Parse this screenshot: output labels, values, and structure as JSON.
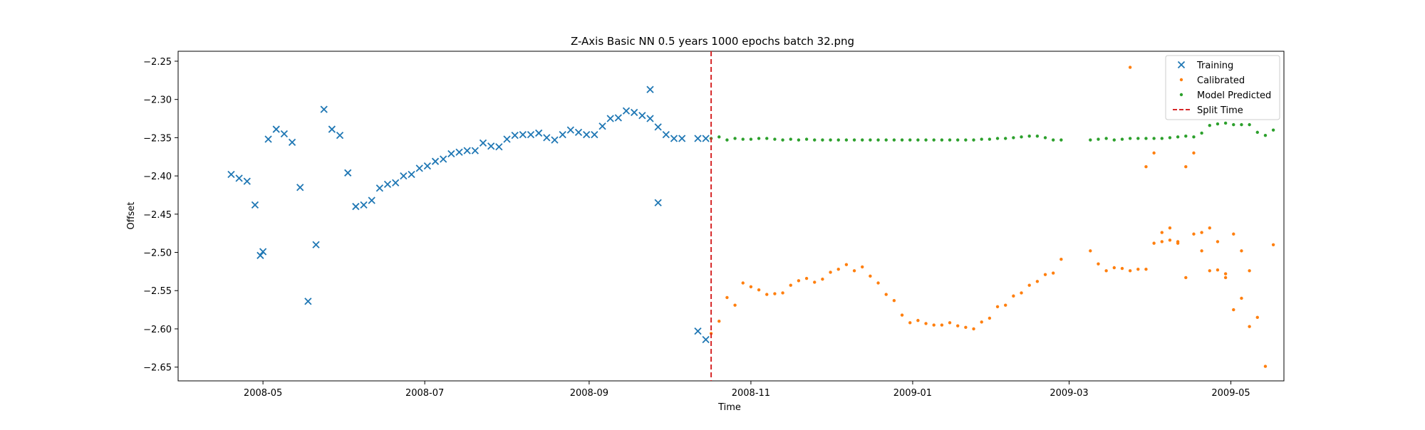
{
  "chart_data": {
    "type": "scatter",
    "title": "Z-Axis Basic NN 0.5 years 1000 epochs batch 32.png",
    "xlabel": "Time",
    "ylabel": "Offset",
    "x_type": "date",
    "xlim": [
      "2008-03-30",
      "2009-05-21"
    ],
    "ylim": [
      -2.668,
      -2.237
    ],
    "x_ticks": [
      "2008-05-01",
      "2008-07-01",
      "2008-09-01",
      "2008-11-01",
      "2009-01-01",
      "2009-03-01",
      "2009-05-01"
    ],
    "x_tick_labels": [
      "2008-05",
      "2008-07",
      "2008-09",
      "2008-11",
      "2009-01",
      "2009-03",
      "2009-05"
    ],
    "y_ticks": [
      -2.25,
      -2.3,
      -2.35,
      -2.4,
      -2.45,
      -2.5,
      -2.55,
      -2.6,
      -2.65
    ],
    "y_tick_labels": [
      "−2.25",
      "−2.30",
      "−2.35",
      "−2.40",
      "−2.45",
      "−2.50",
      "−2.55",
      "−2.60",
      "−2.65"
    ],
    "legend_position": "top-right",
    "colors": {
      "training": "#1f77b4",
      "calibrated": "#ff7f0e",
      "predicted": "#2ca02c",
      "split": "#d62728"
    },
    "split_time": {
      "name": "Split Time",
      "x": "2008-10-17"
    },
    "series": [
      {
        "name": "Training",
        "marker": "x",
        "x": [
          "2008-04-19",
          "2008-04-22",
          "2008-04-25",
          "2008-04-28",
          "2008-05-01",
          "2008-04-30",
          "2008-05-03",
          "2008-05-06",
          "2008-05-09",
          "2008-05-12",
          "2008-05-15",
          "2008-05-18",
          "2008-05-21",
          "2008-05-24",
          "2008-05-27",
          "2008-05-30",
          "2008-06-02",
          "2008-06-05",
          "2008-06-08",
          "2008-06-11",
          "2008-06-14",
          "2008-06-17",
          "2008-06-20",
          "2008-06-23",
          "2008-06-26",
          "2008-06-29",
          "2008-07-02",
          "2008-07-05",
          "2008-07-08",
          "2008-07-11",
          "2008-07-14",
          "2008-07-17",
          "2008-07-20",
          "2008-07-23",
          "2008-07-26",
          "2008-07-29",
          "2008-08-01",
          "2008-08-04",
          "2008-08-07",
          "2008-08-10",
          "2008-08-13",
          "2008-08-16",
          "2008-08-19",
          "2008-08-22",
          "2008-08-25",
          "2008-08-28",
          "2008-08-31",
          "2008-09-03",
          "2008-09-06",
          "2008-09-09",
          "2008-09-12",
          "2008-09-15",
          "2008-09-18",
          "2008-09-21",
          "2008-09-24",
          "2008-09-27",
          "2008-09-30",
          "2008-10-03",
          "2008-10-06",
          "2008-10-12",
          "2008-10-15"
        ],
        "y": [
          -2.398,
          -2.403,
          -2.407,
          -2.438,
          -2.499,
          -2.504,
          -2.352,
          -2.339,
          -2.345,
          -2.356,
          -2.415,
          -2.564,
          -2.49,
          -2.313,
          -2.339,
          -2.347,
          -2.396,
          -2.44,
          -2.438,
          -2.432,
          -2.416,
          -2.411,
          -2.409,
          -2.4,
          -2.398,
          -2.39,
          -2.387,
          -2.381,
          -2.378,
          -2.371,
          -2.369,
          -2.367,
          -2.367,
          -2.357,
          -2.361,
          -2.362,
          -2.352,
          -2.347,
          -2.346,
          -2.346,
          -2.344,
          -2.35,
          -2.353,
          -2.346,
          -2.34,
          -2.343,
          -2.346,
          -2.346,
          -2.335,
          -2.325,
          -2.324,
          -2.315,
          -2.317,
          -2.321,
          -2.325,
          -2.336,
          -2.346,
          -2.351,
          -2.351,
          -2.351,
          -2.351
        ]
      },
      {
        "name": "Calibrated",
        "marker": "dot",
        "x": [
          "2008-10-17",
          "2008-10-20",
          "2008-10-23",
          "2008-10-26",
          "2008-10-29",
          "2008-11-01",
          "2008-11-04",
          "2008-11-07",
          "2008-11-10",
          "2008-11-13",
          "2008-11-16",
          "2008-11-19",
          "2008-11-22",
          "2008-11-25",
          "2008-11-28",
          "2008-12-01",
          "2008-12-04",
          "2008-12-07",
          "2008-12-10",
          "2008-12-13",
          "2008-12-16",
          "2008-12-19",
          "2008-12-22",
          "2008-12-25",
          "2008-12-28",
          "2008-12-31",
          "2009-01-03",
          "2009-01-06",
          "2009-01-09",
          "2009-01-12",
          "2009-01-15",
          "2009-01-18",
          "2009-01-21",
          "2009-01-24",
          "2009-01-27",
          "2009-01-30",
          "2009-02-02",
          "2009-02-05",
          "2009-02-08",
          "2009-02-11",
          "2009-02-14",
          "2009-02-17",
          "2009-02-20",
          "2009-02-23",
          "2009-02-26",
          "2009-03-09",
          "2009-03-12",
          "2009-03-15",
          "2009-03-18",
          "2009-03-21",
          "2009-03-24",
          "2009-03-27",
          "2009-03-30",
          "2009-04-02",
          "2009-04-05",
          "2009-04-08",
          "2009-04-11",
          "2009-04-14",
          "2009-04-17",
          "2009-04-20",
          "2009-04-23",
          "2009-04-26",
          "2009-04-29",
          "2009-05-02",
          "2009-05-05",
          "2009-05-08"
        ],
        "y": [
          -2.606,
          -2.59,
          -2.559,
          -2.569,
          -2.54,
          -2.545,
          -2.549,
          -2.555,
          -2.554,
          -2.553,
          -2.543,
          -2.537,
          -2.534,
          -2.539,
          -2.535,
          -2.526,
          -2.522,
          -2.516,
          -2.524,
          -2.519,
          -2.531,
          -2.54,
          -2.555,
          -2.563,
          -2.582,
          -2.592,
          -2.589,
          -2.593,
          -2.595,
          -2.595,
          -2.592,
          -2.596,
          -2.598,
          -2.6,
          -2.591,
          -2.586,
          -2.571,
          -2.569,
          -2.557,
          -2.553,
          -2.543,
          -2.538,
          -2.529,
          -2.527,
          -2.509,
          -2.498,
          -2.515,
          -2.524,
          -2.52,
          -2.521,
          -2.524,
          -2.522,
          -2.522,
          -2.488,
          -2.486,
          -2.484,
          -2.488,
          -2.388,
          -2.37,
          -2.474,
          -2.468,
          -2.486,
          -2.533,
          -2.476,
          -2.498,
          -2.524
        ]
      },
      {
        "name": "Model Predicted",
        "marker": "dot",
        "x": [
          "2008-10-17",
          "2008-10-20",
          "2008-10-23",
          "2008-10-26",
          "2008-10-29",
          "2008-11-01",
          "2008-11-04",
          "2008-11-07",
          "2008-11-10",
          "2008-11-13",
          "2008-11-16",
          "2008-11-19",
          "2008-11-22",
          "2008-11-25",
          "2008-11-28",
          "2008-12-01",
          "2008-12-04",
          "2008-12-07",
          "2008-12-10",
          "2008-12-13",
          "2008-12-16",
          "2008-12-19",
          "2008-12-22",
          "2008-12-25",
          "2008-12-28",
          "2008-12-31",
          "2009-01-03",
          "2009-01-06",
          "2009-01-09",
          "2009-01-12",
          "2009-01-15",
          "2009-01-18",
          "2009-01-21",
          "2009-01-24",
          "2009-01-27",
          "2009-01-30",
          "2009-02-02",
          "2009-02-05",
          "2009-02-08",
          "2009-02-11",
          "2009-02-14",
          "2009-02-17",
          "2009-02-20",
          "2009-02-23",
          "2009-02-26",
          "2009-03-09",
          "2009-03-12",
          "2009-03-15",
          "2009-03-18",
          "2009-03-21",
          "2009-03-24",
          "2009-03-27",
          "2009-03-30",
          "2009-04-02",
          "2009-04-05",
          "2009-04-08",
          "2009-04-11",
          "2009-04-14",
          "2009-04-17",
          "2009-04-20",
          "2009-04-23",
          "2009-04-26",
          "2009-04-29",
          "2009-05-02",
          "2009-05-05",
          "2009-05-08"
        ],
        "y": [
          -2.351,
          -2.349,
          -2.353,
          -2.351,
          -2.352,
          -2.352,
          -2.351,
          -2.351,
          -2.352,
          -2.353,
          -2.352,
          -2.353,
          -2.352,
          -2.353,
          -2.353,
          -2.353,
          -2.353,
          -2.353,
          -2.353,
          -2.353,
          -2.353,
          -2.353,
          -2.353,
          -2.353,
          -2.353,
          -2.353,
          -2.353,
          -2.353,
          -2.353,
          -2.353,
          -2.353,
          -2.353,
          -2.353,
          -2.353,
          -2.352,
          -2.352,
          -2.351,
          -2.351,
          -2.35,
          -2.349,
          -2.348,
          -2.348,
          -2.35,
          -2.353,
          -2.353,
          -2.353,
          -2.352,
          -2.351,
          -2.353,
          -2.352,
          -2.351,
          -2.351,
          -2.351,
          -2.351,
          -2.351,
          -2.35,
          -2.349,
          -2.348,
          -2.349,
          -2.344,
          -2.334,
          -2.332,
          -2.331,
          -2.333,
          -2.333,
          -2.333
        ]
      }
    ],
    "extra_points": [
      {
        "series": "Training",
        "x": "2008-09-24",
        "y": -2.287
      },
      {
        "series": "Training",
        "x": "2008-09-27",
        "y": -2.435
      },
      {
        "series": "Training",
        "x": "2008-10-12",
        "y": -2.603
      },
      {
        "series": "Training",
        "x": "2008-10-15",
        "y": -2.614
      },
      {
        "series": "Calibrated",
        "x": "2009-03-24",
        "y": -2.258
      },
      {
        "series": "Calibrated",
        "x": "2009-03-30",
        "y": -2.388
      },
      {
        "series": "Calibrated",
        "x": "2009-04-02",
        "y": -2.37
      },
      {
        "series": "Calibrated",
        "x": "2009-04-05",
        "y": -2.474
      },
      {
        "series": "Calibrated",
        "x": "2009-04-08",
        "y": -2.468
      },
      {
        "series": "Calibrated",
        "x": "2009-04-11",
        "y": -2.486
      },
      {
        "series": "Calibrated",
        "x": "2009-04-14",
        "y": -2.533
      },
      {
        "series": "Calibrated",
        "x": "2009-04-17",
        "y": -2.476
      },
      {
        "series": "Calibrated",
        "x": "2009-04-20",
        "y": -2.498
      },
      {
        "series": "Calibrated",
        "x": "2009-04-23",
        "y": -2.524
      },
      {
        "series": "Calibrated",
        "x": "2009-04-26",
        "y": -2.523
      },
      {
        "series": "Calibrated",
        "x": "2009-04-29",
        "y": -2.528
      },
      {
        "series": "Calibrated",
        "x": "2009-05-02",
        "y": -2.575
      },
      {
        "series": "Calibrated",
        "x": "2009-05-05",
        "y": -2.56
      },
      {
        "series": "Calibrated",
        "x": "2009-05-08",
        "y": -2.597
      },
      {
        "series": "Calibrated",
        "x": "2009-05-11",
        "y": -2.585
      },
      {
        "series": "Calibrated",
        "x": "2009-05-14",
        "y": -2.649
      },
      {
        "series": "Calibrated",
        "x": "2009-05-17",
        "y": -2.49
      },
      {
        "series": "Model Predicted",
        "x": "2009-05-11",
        "y": -2.343
      },
      {
        "series": "Model Predicted",
        "x": "2009-05-14",
        "y": -2.347
      },
      {
        "series": "Model Predicted",
        "x": "2009-05-17",
        "y": -2.34
      }
    ]
  }
}
